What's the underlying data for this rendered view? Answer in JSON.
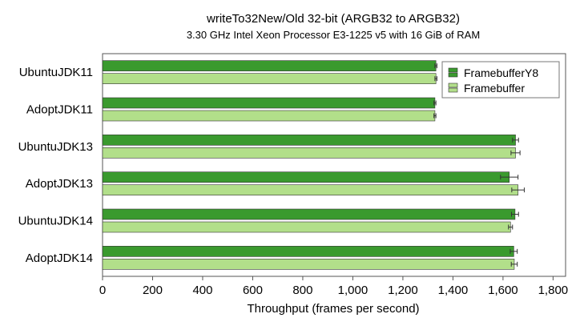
{
  "chart_data": {
    "type": "bar",
    "orientation": "horizontal",
    "title": "writeTo32New/Old 32-bit (ARGB32 to ARGB32)",
    "subtitle": "3.30 GHz Intel Xeon Processor E3-1225 v5 with 16 GiB of RAM",
    "xlabel": "Throughput (frames per second)",
    "ylabel": "",
    "xlim": [
      0,
      1850
    ],
    "x_ticks": [
      0,
      200,
      400,
      600,
      800,
      1000,
      1200,
      1400,
      1600,
      1800
    ],
    "x_tick_labels": [
      "0",
      "200",
      "400",
      "600",
      "800",
      "1,000",
      "1,200",
      "1,400",
      "1,600",
      "1,800"
    ],
    "categories": [
      "UbuntuJDK11",
      "AdoptJDK11",
      "UbuntuJDK13",
      "AdoptJDK13",
      "UbuntuJDK14",
      "AdoptJDK14"
    ],
    "series": [
      {
        "name": "FramebufferY8",
        "color": "#3a9a2e",
        "values": [
          1332,
          1328,
          1650,
          1625,
          1648,
          1643
        ],
        "errors": [
          4,
          4,
          12,
          35,
          14,
          14
        ]
      },
      {
        "name": "Framebuffer",
        "color": "#b2df8a",
        "values": [
          1332,
          1328,
          1650,
          1660,
          1630,
          1645
        ],
        "errors": [
          4,
          4,
          18,
          25,
          8,
          12
        ]
      }
    ],
    "grid": false,
    "legend_position": "top-right"
  }
}
